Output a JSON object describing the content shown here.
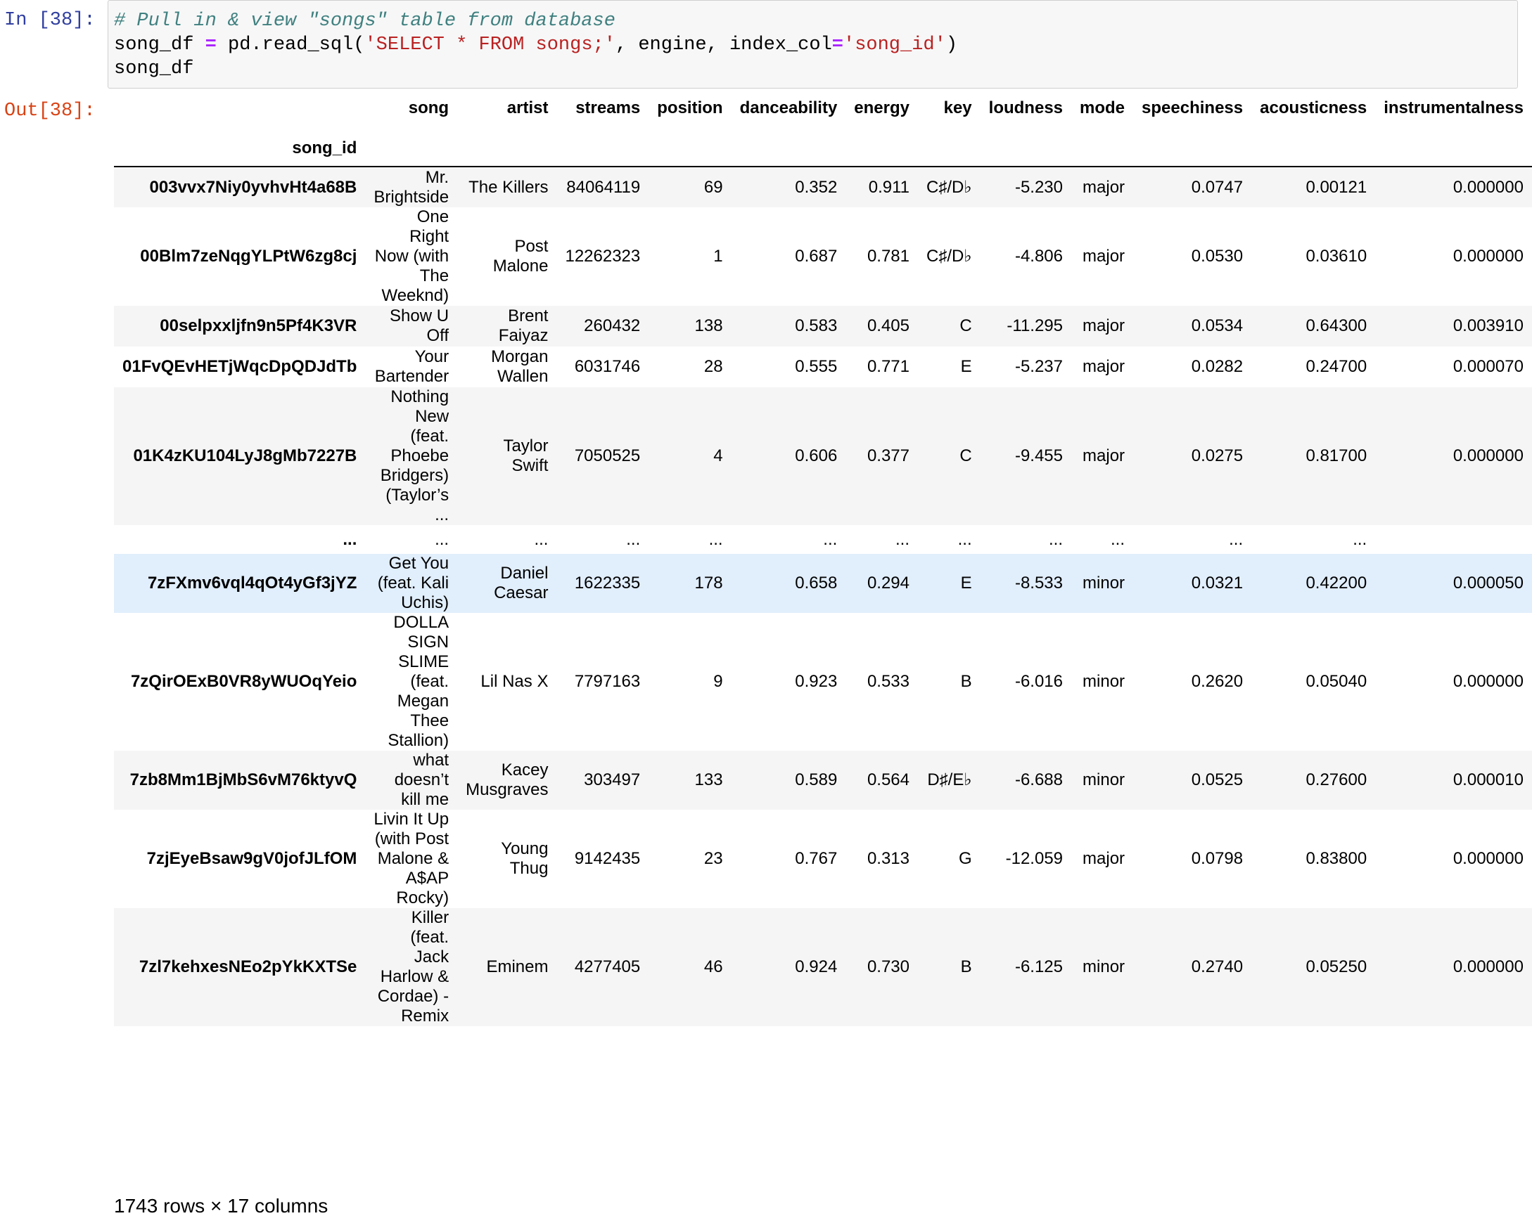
{
  "cell": {
    "in_prompt": "In [38]:",
    "out_prompt": "Out[38]:",
    "code_line1": "# Pull in & view \"songs\" table from database",
    "code_line2_var": "song_df",
    "code_line2_eq": "=",
    "code_line2_call": "pd.read_sql(",
    "code_line2_sql": "'SELECT * FROM songs;'",
    "code_line2_mid": ", engine, index_col",
    "code_line2_eq2": "=",
    "code_line2_arg": "'song_id'",
    "code_line2_close": ")",
    "code_line3": "song_df"
  },
  "dataframe": {
    "index_name": "song_id",
    "columns": [
      "song",
      "artist",
      "streams",
      "position",
      "danceability",
      "energy",
      "key",
      "loudness",
      "mode",
      "speechiness",
      "acousticness",
      "instrumentalness"
    ],
    "rows": [
      {
        "id": "003vvx7Niy0yvhvHt4a68B",
        "cells": [
          "Mr. Brightside",
          "The Killers",
          "84064119",
          "69",
          "0.352",
          "0.911",
          "C♯/D♭",
          "-5.230",
          "major",
          "0.0747",
          "0.00121",
          "0.000000"
        ]
      },
      {
        "id": "00Blm7zeNqgYLPtW6zg8cj",
        "cells": [
          "One Right Now (with The Weeknd)",
          "Post Malone",
          "12262323",
          "1",
          "0.687",
          "0.781",
          "C♯/D♭",
          "-4.806",
          "major",
          "0.0530",
          "0.03610",
          "0.000000"
        ]
      },
      {
        "id": "00selpxxljfn9n5Pf4K3VR",
        "cells": [
          "Show U Off",
          "Brent Faiyaz",
          "260432",
          "138",
          "0.583",
          "0.405",
          "C",
          "-11.295",
          "major",
          "0.0534",
          "0.64300",
          "0.003910"
        ]
      },
      {
        "id": "01FvQEvHETjWqcDpQDJdTb",
        "cells": [
          "Your Bartender",
          "Morgan Wallen",
          "6031746",
          "28",
          "0.555",
          "0.771",
          "E",
          "-5.237",
          "major",
          "0.0282",
          "0.24700",
          "0.000070"
        ]
      },
      {
        "id": "01K4zKU104LyJ8gMb7227B",
        "cells": [
          "Nothing New (feat. Phoebe Bridgers) (Taylor’s ...",
          "Taylor Swift",
          "7050525",
          "4",
          "0.606",
          "0.377",
          "C",
          "-9.455",
          "major",
          "0.0275",
          "0.81700",
          "0.000000"
        ]
      },
      {
        "id": "...",
        "cells": [
          "...",
          "...",
          "...",
          "...",
          "...",
          "...",
          "...",
          "...",
          "...",
          "...",
          "...",
          ""
        ]
      },
      {
        "id": "7zFXmv6vql4qOt4yGf3jYZ",
        "cells": [
          "Get You (feat. Kali Uchis)",
          "Daniel Caesar",
          "1622335",
          "178",
          "0.658",
          "0.294",
          "E",
          "-8.533",
          "minor",
          "0.0321",
          "0.42200",
          "0.000050"
        ]
      },
      {
        "id": "7zQirOExB0VR8yWUOqYeio",
        "cells": [
          "DOLLA SIGN SLIME (feat. Megan Thee Stallion)",
          "Lil Nas X",
          "7797163",
          "9",
          "0.923",
          "0.533",
          "B",
          "-6.016",
          "minor",
          "0.2620",
          "0.05040",
          "0.000000"
        ]
      },
      {
        "id": "7zb8Mm1BjMbS6vM76ktyvQ",
        "cells": [
          "what doesn’t kill me",
          "Kacey Musgraves",
          "303497",
          "133",
          "0.589",
          "0.564",
          "D♯/E♭",
          "-6.688",
          "minor",
          "0.0525",
          "0.27600",
          "0.000010"
        ]
      },
      {
        "id": "7zjEyeBsaw9gV0jofJLfOM",
        "cells": [
          "Livin It Up (with Post Malone & A$AP Rocky)",
          "Young Thug",
          "9142435",
          "23",
          "0.767",
          "0.313",
          "G",
          "-12.059",
          "major",
          "0.0798",
          "0.83800",
          "0.000000"
        ]
      },
      {
        "id": "7zl7kehxesNEo2pYkKXTSe",
        "cells": [
          "Killer (feat. Jack Harlow & Cordae) - Remix",
          "Eminem",
          "4277405",
          "46",
          "0.924",
          "0.730",
          "B",
          "-6.125",
          "minor",
          "0.2740",
          "0.05250",
          "0.000000"
        ]
      }
    ],
    "shape_text": "1743 rows × 17 columns"
  }
}
